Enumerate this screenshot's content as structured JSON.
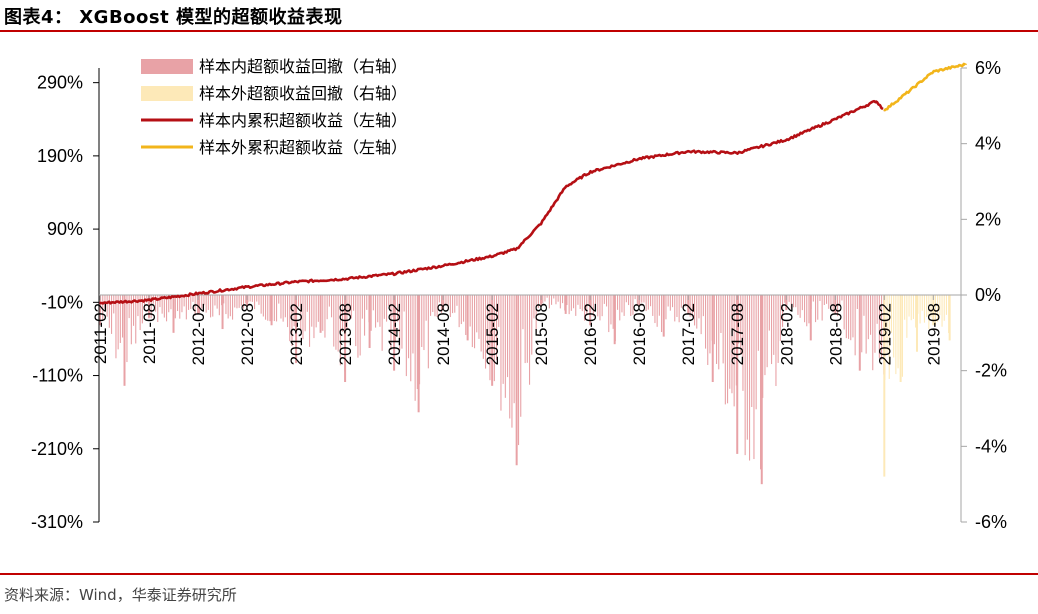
{
  "header": {
    "title": "图表4：  XGBoost 模型的超额收益表现"
  },
  "footer": {
    "source": "资料来源：Wind，华泰证券研究所"
  },
  "colors": {
    "brand_rule": "#c00000",
    "in_sample_line": "#b50f14",
    "out_sample_line": "#f2b51b",
    "in_sample_dd": "#e8a2a6",
    "out_sample_dd": "#fde9b8"
  },
  "chart_data": {
    "type": "line",
    "legend_position": "top-left",
    "grid": false,
    "left_axis": {
      "ylim": [
        -310,
        310
      ],
      "ticks": [
        -310,
        -210,
        -110,
        -10,
        90,
        190,
        290
      ],
      "tick_labels": [
        "-310%",
        "-210%",
        "-110%",
        "-10%",
        "90%",
        "190%",
        "290%"
      ]
    },
    "right_axis": {
      "ylim": [
        -6,
        6
      ],
      "ticks": [
        -6,
        -4,
        -2,
        0,
        2,
        4,
        6
      ],
      "tick_labels": [
        "-6%",
        "-4%",
        "-2%",
        "0%",
        "2%",
        "4%",
        "6%"
      ]
    },
    "x_tick_labels": [
      "2011-02",
      "2011-08",
      "2012-02",
      "2012-08",
      "2013-02",
      "2013-08",
      "2014-02",
      "2014-08",
      "2015-02",
      "2015-08",
      "2016-02",
      "2016-08",
      "2017-02",
      "2017-08",
      "2018-02",
      "2018-08",
      "2019-02",
      "2019-08"
    ],
    "series": [
      {
        "name": "样本内超额收益回撤（右轴）",
        "kind": "bar",
        "axis": "right",
        "x": [
          "2011-02",
          "2011-05",
          "2011-08",
          "2011-11",
          "2012-02",
          "2012-05",
          "2012-08",
          "2012-11",
          "2013-02",
          "2013-05",
          "2013-08",
          "2013-11",
          "2014-02",
          "2014-05",
          "2014-08",
          "2014-11",
          "2015-02",
          "2015-05",
          "2015-08",
          "2015-11",
          "2016-02",
          "2016-05",
          "2016-08",
          "2016-11",
          "2017-02",
          "2017-05",
          "2017-08",
          "2017-11",
          "2018-02",
          "2018-05",
          "2018-08",
          "2018-11",
          "2019-02"
        ],
        "values": [
          -0.8,
          -2.4,
          -0.6,
          -1.0,
          -0.5,
          -0.9,
          -0.3,
          -0.8,
          -1.8,
          -1.0,
          -2.3,
          -1.4,
          -2.0,
          -3.1,
          -0.4,
          -1.2,
          -2.4,
          -4.5,
          -0.3,
          -0.5,
          -0.8,
          -1.3,
          -0.3,
          -1.1,
          -0.5,
          -2.3,
          -4.2,
          -5.0,
          -0.4,
          -1.2,
          -0.5,
          -2.0,
          -2.1
        ]
      },
      {
        "name": "样本外超额收益回撤（右轴）",
        "kind": "bar",
        "axis": "right",
        "x": [
          "2019-02",
          "2019-04",
          "2019-06",
          "2019-08",
          "2019-10"
        ],
        "values": [
          -4.8,
          -2.3,
          -1.5,
          -0.8,
          -1.2
        ]
      },
      {
        "name": "样本内累积超额收益（左轴）",
        "kind": "line",
        "axis": "left",
        "x": [
          "2011-02",
          "2011-08",
          "2012-02",
          "2012-08",
          "2013-02",
          "2013-08",
          "2014-02",
          "2014-08",
          "2015-02",
          "2015-05",
          "2015-08",
          "2015-11",
          "2016-02",
          "2016-08",
          "2017-02",
          "2017-08",
          "2018-02",
          "2018-08",
          "2019-01",
          "2019-02"
        ],
        "values": [
          -11,
          -7,
          2,
          11,
          18,
          22,
          29,
          40,
          53,
          63,
          98,
          148,
          168,
          186,
          196,
          194,
          212,
          240,
          265,
          252
        ]
      },
      {
        "name": "样本外累积超额收益（左轴）",
        "kind": "line",
        "axis": "left",
        "x": [
          "2019-02",
          "2019-05",
          "2019-08",
          "2019-10",
          "2019-12"
        ],
        "values": [
          252,
          278,
          305,
          310,
          315
        ]
      }
    ]
  }
}
